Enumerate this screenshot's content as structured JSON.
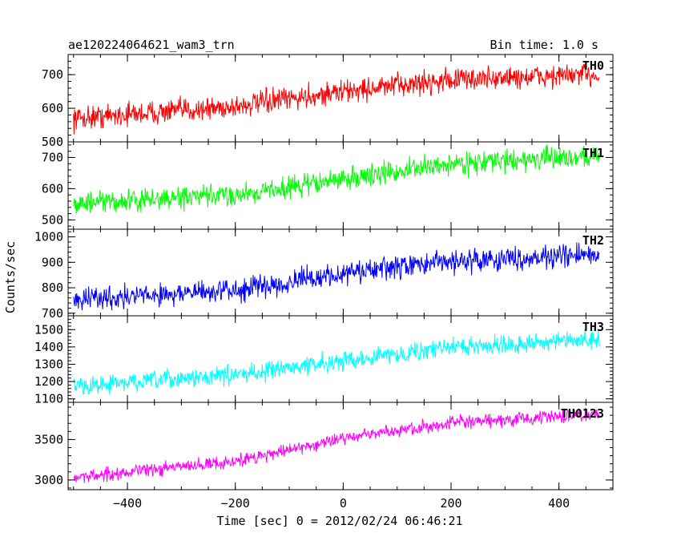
{
  "header": {
    "title": "ae120224064621_wam3_trn",
    "bin_time": "Bin time: 1.0 s"
  },
  "axes": {
    "ylabel": "Counts/sec",
    "xlabel": "Time [sec] 0 = 2012/02/24 06:46:21"
  },
  "chart_data": [
    {
      "type": "line",
      "name": "TH0",
      "color": "#ff0000",
      "xlim": [
        -510,
        500
      ],
      "ylim": [
        500,
        760
      ],
      "yticks": [
        500,
        600,
        700
      ],
      "x_range": [
        -500,
        475
      ],
      "trend": {
        "x": [
          -500,
          -200,
          0,
          200,
          475
        ],
        "y": [
          570,
          605,
          650,
          685,
          700
        ]
      },
      "noise_amplitude": 30
    },
    {
      "type": "line",
      "name": "TH1",
      "color": "#00ff00",
      "xlim": [
        -510,
        500
      ],
      "ylim": [
        470,
        750
      ],
      "yticks": [
        500,
        600,
        700
      ],
      "x_range": [
        -500,
        475
      ],
      "trend": {
        "x": [
          -500,
          -200,
          0,
          200,
          475
        ],
        "y": [
          550,
          580,
          630,
          680,
          705
        ]
      },
      "noise_amplitude": 30
    },
    {
      "type": "line",
      "name": "TH2",
      "color": "#0000ff",
      "xlim": [
        -510,
        500
      ],
      "ylim": [
        690,
        1030
      ],
      "yticks": [
        700,
        800,
        900,
        1000
      ],
      "x_range": [
        -500,
        475
      ],
      "trend": {
        "x": [
          -500,
          -200,
          0,
          200,
          475
        ],
        "y": [
          755,
          790,
          855,
          905,
          930
        ]
      },
      "noise_amplitude": 38
    },
    {
      "type": "line",
      "name": "TH3",
      "color": "#00ffff",
      "xlim": [
        -510,
        500
      ],
      "ylim": [
        1080,
        1580
      ],
      "yticks": [
        1100,
        1200,
        1300,
        1400,
        1500
      ],
      "x_range": [
        -500,
        475
      ],
      "trend": {
        "x": [
          -500,
          -200,
          0,
          200,
          475
        ],
        "y": [
          1170,
          1240,
          1320,
          1400,
          1440
        ]
      },
      "noise_amplitude": 45
    },
    {
      "type": "line",
      "name": "TH0123",
      "color": "#ff00ff",
      "xlim": [
        -510,
        500
      ],
      "ylim": [
        2880,
        3960
      ],
      "yticks": [
        3000,
        3500
      ],
      "x_range": [
        -500,
        475
      ],
      "trend": {
        "x": [
          -500,
          -200,
          0,
          200,
          475
        ],
        "y": [
          3030,
          3230,
          3520,
          3700,
          3810
        ]
      },
      "noise_amplitude": 70
    }
  ],
  "xticks": [
    -400,
    -200,
    0,
    200,
    400
  ]
}
